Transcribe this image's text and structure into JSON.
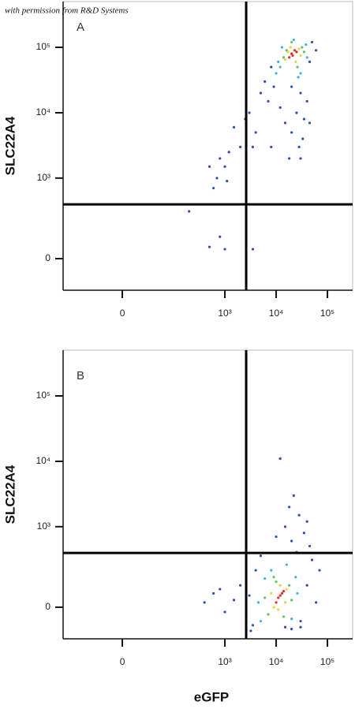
{
  "note": "with permission from R&D Systems",
  "chart_data": [
    {
      "type": "scatter",
      "panel_label": "A",
      "y_label": "SLC22A4",
      "x_label": "eGFP",
      "xscale": "biexponential",
      "yscale": "biexponential",
      "xlim": [
        -142,
        310000
      ],
      "ylim": [
        -160,
        500000
      ],
      "xticks": [
        0,
        {
          "value": 1000,
          "label": "10³"
        },
        {
          "value": 10000,
          "label": "10⁴"
        },
        {
          "value": 100000,
          "label": "10⁵"
        }
      ],
      "yticks": [
        0,
        {
          "value": 1000,
          "label": "10³"
        },
        {
          "value": 10000,
          "label": "10⁴"
        },
        {
          "value": 100000,
          "label": "10⁵"
        }
      ],
      "gate": {
        "x": 2600,
        "y": 390
      },
      "series": [
        {
          "color": "#2b4fb5",
          "x": [
            6000,
            8000,
            5000,
            45000,
            50000,
            9000,
            7000,
            30000,
            25000,
            40000,
            35000,
            20000,
            15000,
            12000,
            60000,
            3000,
            4000,
            2000,
            1500,
            1200,
            800,
            500,
            700,
            2500,
            3500,
            28000,
            33000,
            18000,
            45000,
            1000,
            600,
            200,
            800,
            1000,
            3500,
            500,
            1100,
            20000,
            30000,
            8000
          ],
          "values": [
            30000,
            50000,
            20000,
            60000,
            120000,
            25000,
            15000,
            20000,
            10000,
            15000,
            8000,
            5000,
            7000,
            12000,
            90000,
            10000,
            5000,
            3000,
            6000,
            2500,
            2000,
            1500,
            1000,
            8000,
            3000,
            3000,
            4000,
            2000,
            7000,
            1500,
            700,
            300,
            100,
            40,
            40,
            50,
            900,
            25000,
            2000,
            3000
          ]
        },
        {
          "color": "#39b5d6",
          "x": [
            10000,
            38000,
            11000,
            30000,
            22000,
            40000,
            13000,
            27000
          ],
          "values": [
            40000,
            110000,
            60000,
            40000,
            130000,
            70000,
            100000,
            35000
          ]
        },
        {
          "color": "#5cc46a",
          "x": [
            12000,
            32000,
            14000,
            26000,
            20000,
            35000,
            16000
          ],
          "values": [
            50000,
            100000,
            70000,
            50000,
            120000,
            85000,
            90000
          ]
        },
        {
          "color": "#e8d63a",
          "x": [
            15000,
            28000,
            19000,
            24000,
            17000,
            30000
          ],
          "values": [
            65000,
            95000,
            100000,
            60000,
            85000,
            75000
          ]
        },
        {
          "color": "#e0302a",
          "x": [
            20000,
            23000,
            18000,
            25000,
            21000
          ],
          "values": [
            80000,
            90000,
            70000,
            85000,
            75000
          ]
        }
      ]
    },
    {
      "type": "scatter",
      "panel_label": "B",
      "y_label": "SLC22A4",
      "xscale": "biexponential",
      "yscale": "biexponential",
      "xlim": [
        -142,
        310000
      ],
      "ylim": [
        -160,
        500000
      ],
      "xticks": [
        0,
        {
          "value": 1000,
          "label": "10³"
        },
        {
          "value": 10000,
          "label": "10⁴"
        },
        {
          "value": 100000,
          "label": "10⁵"
        }
      ],
      "yticks": [
        0,
        {
          "value": 1000,
          "label": "10³"
        },
        {
          "value": 10000,
          "label": "10⁴"
        },
        {
          "value": 100000,
          "label": "10⁵"
        }
      ],
      "gate": {
        "x": 2600,
        "y": 390
      },
      "series": [
        {
          "color": "#2b4fb5",
          "x": [
            3500,
            3000,
            4000,
            30000,
            40000,
            50000,
            60000,
            25000,
            20000,
            35000,
            15000,
            10000,
            5000,
            2000,
            1500,
            800,
            1000,
            600,
            400,
            18000,
            22000,
            28000,
            12000,
            45000,
            30000,
            20000,
            3200,
            15000,
            70000,
            40000
          ],
          "values": [
            -80,
            50,
            200,
            -60,
            100,
            300,
            20,
            400,
            600,
            800,
            1000,
            700,
            350,
            100,
            30,
            80,
            -20,
            60,
            20,
            2000,
            3000,
            1500,
            11000,
            500,
            -90,
            -100,
            -110,
            -90,
            200,
            1200
          ]
        },
        {
          "color": "#39b5d6",
          "x": [
            5000,
            24000,
            4500,
            26000,
            8000,
            20000,
            6000,
            16000
          ],
          "values": [
            -60,
            150,
            20,
            60,
            200,
            -50,
            140,
            250
          ]
        },
        {
          "color": "#5cc46a",
          "x": [
            7000,
            18000,
            6000,
            20000,
            9000,
            14000,
            10000
          ],
          "values": [
            -30,
            100,
            40,
            30,
            150,
            -40,
            120
          ]
        },
        {
          "color": "#e8d63a",
          "x": [
            9000,
            16000,
            8000,
            15000,
            12000,
            11000
          ],
          "values": [
            0,
            80,
            60,
            20,
            100,
            -10
          ]
        },
        {
          "color": "#e0302a",
          "x": [
            11000,
            13000,
            10000,
            14000,
            12000
          ],
          "values": [
            40,
            60,
            20,
            70,
            50
          ]
        }
      ]
    }
  ]
}
